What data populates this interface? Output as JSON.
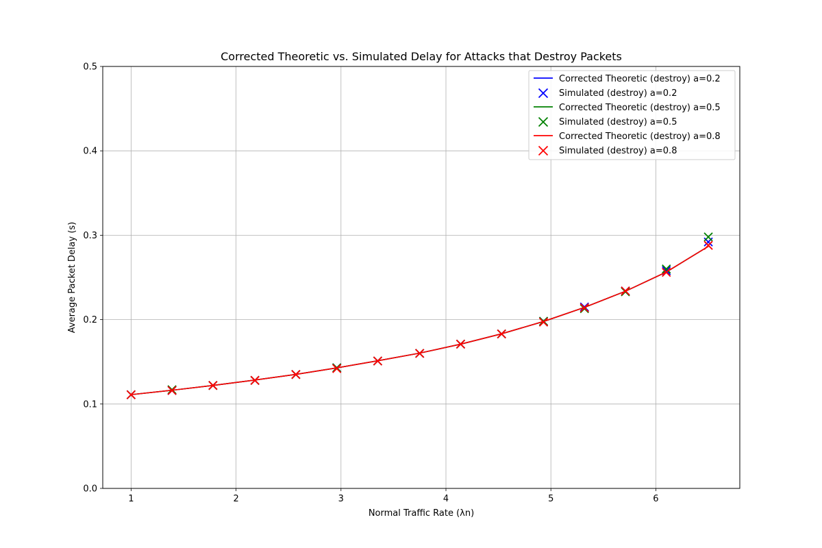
{
  "chart_data": {
    "type": "line",
    "title": "Corrected Theoretic vs. Simulated Delay for Attacks that Destroy Packets",
    "xlabel": "Normal Traffic Rate (λn)",
    "ylabel": "Average Packet Delay (s)",
    "xlim": [
      0.73,
      6.8
    ],
    "ylim": [
      0.0,
      0.5
    ],
    "xticks": [
      "1",
      "2",
      "3",
      "4",
      "5",
      "6"
    ],
    "yticks": [
      "0.0",
      "0.1",
      "0.2",
      "0.3",
      "0.4",
      "0.5"
    ],
    "grid": true,
    "legend_position": "top-right",
    "x": [
      1.0,
      1.39,
      1.78,
      2.18,
      2.57,
      2.96,
      3.35,
      3.75,
      4.14,
      4.53,
      4.93,
      5.32,
      5.71,
      6.1,
      6.5
    ],
    "series": [
      {
        "name": "Corrected Theoretic (destroy) a=0.2",
        "kind": "line",
        "color": "#0000ff",
        "values": [
          0.1111,
          0.1163,
          0.122,
          0.1284,
          0.1351,
          0.1428,
          0.1512,
          0.1603,
          0.1709,
          0.1832,
          0.1978,
          0.2145,
          0.2336,
          0.2564,
          0.2868
        ]
      },
      {
        "name": "Simulated (destroy) a=0.2",
        "kind": "marker",
        "color": "#0000ff",
        "values": [
          0.111,
          0.116,
          0.122,
          0.128,
          0.135,
          0.143,
          0.151,
          0.16,
          0.171,
          0.183,
          0.198,
          0.215,
          0.234,
          0.258,
          0.292
        ]
      },
      {
        "name": "Corrected Theoretic (destroy) a=0.5",
        "kind": "line",
        "color": "#008000",
        "values": [
          0.1111,
          0.1163,
          0.122,
          0.1284,
          0.1351,
          0.1428,
          0.1512,
          0.1603,
          0.1709,
          0.1832,
          0.1978,
          0.2145,
          0.2336,
          0.2564,
          0.2868
        ]
      },
      {
        "name": "Simulated (destroy) a=0.5",
        "kind": "marker",
        "color": "#008000",
        "values": [
          0.111,
          0.117,
          0.122,
          0.128,
          0.135,
          0.143,
          0.151,
          0.16,
          0.171,
          0.183,
          0.198,
          0.213,
          0.233,
          0.26,
          0.298
        ]
      },
      {
        "name": "Corrected Theoretic (destroy) a=0.8",
        "kind": "line",
        "color": "#ff0000",
        "values": [
          0.1111,
          0.1163,
          0.122,
          0.1284,
          0.1351,
          0.1428,
          0.1512,
          0.1603,
          0.1709,
          0.1832,
          0.1978,
          0.2145,
          0.2336,
          0.2564,
          0.2868
        ]
      },
      {
        "name": "Simulated (destroy) a=0.8",
        "kind": "marker",
        "color": "#ff0000",
        "values": [
          0.111,
          0.116,
          0.122,
          0.128,
          0.135,
          0.142,
          0.151,
          0.16,
          0.171,
          0.183,
          0.197,
          0.214,
          0.234,
          0.256,
          0.288
        ]
      }
    ]
  }
}
